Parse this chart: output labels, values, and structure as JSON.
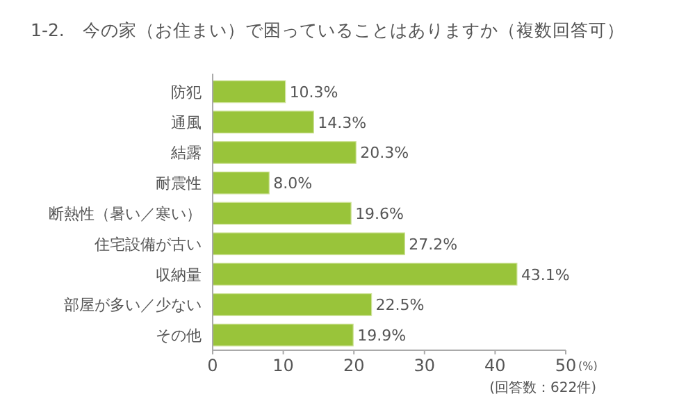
{
  "chart_data": {
    "type": "bar",
    "orientation": "horizontal",
    "title": "1-2.　今の家（お住まい）で困っていることはありますか（複数回答可）",
    "categories": [
      "防犯",
      "通風",
      "結露",
      "耐震性",
      "断熱性（暑い／寒い）",
      "住宅設備が古い",
      "収納量",
      "部屋が多い／少ない",
      "その他"
    ],
    "values": [
      10.3,
      14.3,
      20.3,
      8.0,
      19.6,
      27.2,
      43.1,
      22.5,
      19.9
    ],
    "value_labels": [
      "10.3%",
      "14.3%",
      "20.3%",
      "8.0%",
      "19.6%",
      "27.2%",
      "43.1%",
      "22.5%",
      "19.9%"
    ],
    "color": "#99c43a",
    "xlim": [
      0,
      50
    ],
    "xticks": [
      0,
      10,
      20,
      30,
      40,
      50
    ],
    "xlabel": "(%)",
    "annotations": [
      "(回答数：622件)"
    ],
    "grid": false
  }
}
